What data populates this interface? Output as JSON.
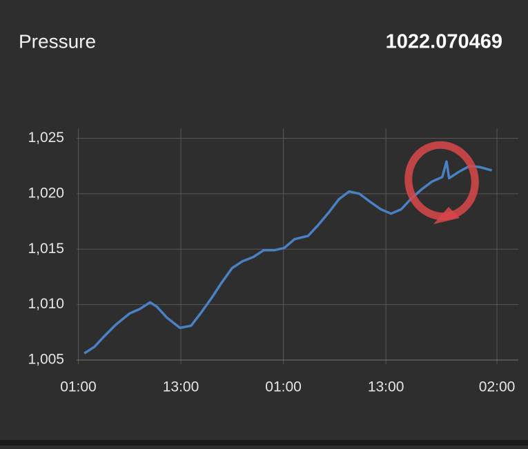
{
  "header": {
    "title": "Pressure",
    "value": "1022.070469"
  },
  "chart_data": {
    "type": "line",
    "x": [
      1.7,
      2.9,
      4.1,
      5.4,
      7.0,
      8.2,
      9.4,
      10.2,
      11.4,
      12.9,
      14.2,
      15.4,
      16.6,
      17.8,
      19.0,
      20.2,
      21.5,
      22.7,
      23.9,
      25.1,
      26.3,
      27.9,
      29.1,
      30.3,
      31.5,
      32.7,
      33.9,
      35.1,
      36.4,
      37.6,
      38.8,
      40.0,
      41.2,
      42.4,
      43.6,
      44.1,
      44.4,
      45.6,
      46.8,
      48.0,
      49.4
    ],
    "series": [
      {
        "color": "#4a80c4",
        "values": [
          1005.6,
          1006.2,
          1007.2,
          1008.2,
          1009.2,
          1009.6,
          1010.2,
          1009.8,
          1008.8,
          1007.9,
          1008.1,
          1009.3,
          1010.6,
          1012.0,
          1013.3,
          1013.9,
          1014.3,
          1014.9,
          1014.9,
          1015.1,
          1015.9,
          1016.2,
          1017.2,
          1018.3,
          1019.5,
          1020.2,
          1020.0,
          1019.3,
          1018.6,
          1018.2,
          1018.6,
          1019.6,
          1020.4,
          1021.1,
          1021.5,
          1022.9,
          1021.4,
          1022.0,
          1022.5,
          1022.4,
          1022.1
        ]
      }
    ],
    "xlim": [
      0.8,
      52.5
    ],
    "xticks": [
      {
        "value": 1,
        "label": "01:00"
      },
      {
        "value": 13,
        "label": "13:00"
      },
      {
        "value": 25,
        "label": "01:00"
      },
      {
        "value": 37,
        "label": "13:00"
      },
      {
        "value": 50,
        "label": "02:00"
      }
    ],
    "ylim": [
      1005,
      1025.9
    ],
    "yticks": [
      {
        "value": 1005,
        "label": "1,005"
      },
      {
        "value": 1010,
        "label": "1,010"
      },
      {
        "value": 1015,
        "label": "1,015"
      },
      {
        "value": 1020,
        "label": "1,020"
      },
      {
        "value": 1025,
        "label": "1,025"
      }
    ],
    "grid": true
  }
}
